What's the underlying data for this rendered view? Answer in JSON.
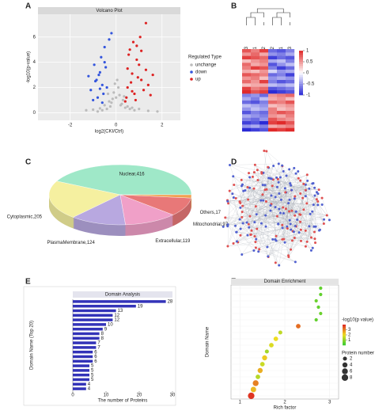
{
  "panel_labels": [
    "A",
    "B",
    "C",
    "D",
    "E",
    "F"
  ],
  "chart_data": [
    {
      "type": "scatter",
      "title": "Volcano Plot",
      "xlabel": "log2(CKI/Ctrl)",
      "ylabel": "-log10(p-value)",
      "xlim": [
        -3.4,
        2.8
      ],
      "xticks": [
        -2,
        0,
        2
      ],
      "ylim": [
        -0.6,
        7.8
      ],
      "yticks": [
        0,
        2,
        4,
        6
      ],
      "grid": true,
      "legend_title": "Regulated Type",
      "series": [
        {
          "name": "unchange",
          "color": "#bbbbbb",
          "x": [
            -0.4,
            -0.2,
            0,
            0.2,
            0.4,
            -0.6,
            0.6,
            -0.1,
            0.1,
            -0.3,
            0.3,
            0.5,
            -0.5,
            0.8,
            -0.8,
            1.0,
            -1.0,
            1.4,
            0.05,
            -0.05,
            0.15,
            -0.15,
            0.25,
            -0.25,
            1.8,
            -1.3,
            0.7,
            -0.7,
            0.35,
            -0.35
          ],
          "y": [
            0.3,
            0.8,
            1.2,
            0.6,
            0.4,
            0.2,
            0.3,
            1.6,
            2.0,
            0.9,
            1.0,
            0.5,
            0.6,
            0.2,
            0.1,
            0.3,
            0.25,
            0.15,
            2.6,
            2.3,
            1.4,
            1.1,
            0.7,
            0.5,
            0.1,
            0.2,
            0.4,
            0.35,
            1.3,
            1.5
          ]
        },
        {
          "name": "down",
          "color": "#3355dd",
          "x": [
            -0.9,
            -0.7,
            -0.5,
            -1.1,
            -0.6,
            -0.8,
            -0.45,
            -1.2,
            -0.55,
            -0.65,
            -0.75,
            -0.4,
            -1.0,
            -0.85,
            -0.5,
            -0.95,
            -0.6,
            -0.7,
            -0.3,
            -0.2
          ],
          "y": [
            2.5,
            3.2,
            4.0,
            1.8,
            2.2,
            1.2,
            3.6,
            2.9,
            1.5,
            4.4,
            3.0,
            2.0,
            1.0,
            2.6,
            5.2,
            3.8,
            0.8,
            1.9,
            5.8,
            6.3
          ]
        },
        {
          "name": "up",
          "color": "#dd2222",
          "x": [
            0.5,
            0.7,
            0.9,
            1.1,
            1.3,
            0.6,
            0.8,
            1.0,
            1.2,
            0.45,
            0.55,
            0.65,
            0.75,
            0.85,
            0.95,
            1.05,
            1.4,
            1.6,
            0.4,
            0.5,
            0.7,
            0.9,
            1.5,
            1.1,
            1.3
          ],
          "y": [
            2.0,
            3.1,
            4.2,
            2.6,
            3.4,
            5.0,
            1.5,
            3.8,
            1.8,
            1.2,
            4.6,
            2.4,
            5.6,
            1.0,
            2.8,
            6.0,
            2.2,
            3.0,
            0.9,
            3.5,
            1.7,
            5.3,
            1.4,
            4.9,
            7.1
          ]
        }
      ]
    },
    {
      "type": "heatmap",
      "columns": [
        "CKI3",
        "CKI1",
        "CKI2",
        "Ctrl2",
        "Ctrl1",
        "Ctrl3"
      ],
      "colorlim": [
        -1,
        1
      ],
      "colorticks": [
        1,
        0.5,
        0,
        -0.5,
        -1
      ],
      "colors": [
        "#2b2bd6",
        "#ffffff",
        "#e02a2a"
      ],
      "values": [
        [
          0.8,
          0.6,
          0.9,
          -0.7,
          -0.8,
          -0.6
        ],
        [
          0.5,
          0.7,
          0.4,
          -0.5,
          -0.6,
          -0.4
        ],
        [
          0.9,
          0.8,
          0.7,
          -0.9,
          -0.7,
          -0.8
        ],
        [
          0.3,
          0.5,
          0.6,
          -0.4,
          -0.3,
          -0.6
        ],
        [
          0.7,
          0.4,
          0.5,
          -0.8,
          -0.5,
          -0.3
        ],
        [
          0.6,
          0.9,
          0.8,
          -0.6,
          -0.9,
          -0.7
        ],
        [
          0.4,
          0.3,
          0.5,
          -0.2,
          -0.5,
          -0.4
        ],
        [
          0.8,
          0.7,
          0.6,
          -0.7,
          -0.6,
          -0.9
        ],
        [
          0.5,
          0.6,
          0.3,
          -0.5,
          -0.4,
          -0.5
        ],
        [
          0.7,
          0.5,
          0.9,
          -0.6,
          -0.8,
          -0.7
        ],
        [
          0.3,
          0.4,
          0.4,
          -0.3,
          -0.4,
          -0.3
        ],
        [
          0.9,
          0.6,
          0.7,
          -0.8,
          -0.7,
          -0.6
        ],
        [
          1.0,
          0.8,
          0.9,
          -1.0,
          -0.9,
          -0.8
        ],
        [
          -0.6,
          -0.5,
          -0.7,
          0.5,
          0.6,
          0.7
        ],
        [
          -0.4,
          -0.6,
          -0.3,
          0.4,
          0.5,
          0.3
        ],
        [
          -0.7,
          -0.8,
          -0.6,
          0.7,
          0.6,
          0.8
        ],
        [
          -0.3,
          -0.4,
          -0.5,
          0.3,
          0.4,
          0.5
        ],
        [
          -0.5,
          -0.3,
          -0.4,
          0.6,
          0.3,
          0.4
        ],
        [
          -0.8,
          -0.6,
          -0.7,
          0.6,
          0.8,
          0.7
        ],
        [
          -0.4,
          -0.5,
          -0.6,
          0.5,
          0.4,
          0.6
        ],
        [
          -0.6,
          -0.7,
          -0.5,
          0.8,
          0.6,
          0.5
        ],
        [
          -0.9,
          -0.8,
          -1.0,
          0.9,
          1.0,
          0.8
        ],
        [
          -0.5,
          -0.4,
          -0.6,
          0.4,
          0.5,
          0.6
        ],
        [
          -1.0,
          -0.9,
          -0.8,
          1.0,
          0.9,
          1.0
        ]
      ]
    },
    {
      "type": "pie",
      "values": [
        416,
        205,
        124,
        119,
        97,
        17
      ],
      "value_labels": [
        "Nuclear,416",
        "Cytoplasmic,205",
        "PlasmaMembrane,124",
        "Extracellular,119",
        "Mitochondrial,97",
        "Others,17"
      ],
      "colors": [
        "#9fe8c8",
        "#f5f0a0",
        "#b8a8e0",
        "#f0a0c8",
        "#e87878",
        "#f0a050"
      ]
    },
    {
      "type": "barh",
      "title": "Domain Analysis",
      "xlabel": "The number of Proteins",
      "ylabel": "Domain Name (Top 20)",
      "categories": [
        null,
        null,
        null,
        null,
        null,
        null,
        null,
        null,
        null,
        null,
        null,
        null,
        null,
        null,
        null,
        null,
        null,
        null,
        null,
        null
      ],
      "values": [
        28,
        19,
        13,
        12,
        12,
        10,
        9,
        8,
        8,
        7,
        7,
        6,
        6,
        6,
        5,
        5,
        5,
        5,
        4,
        4
      ],
      "color": "#3333b8",
      "xlim": [
        0,
        30
      ],
      "xticks": [
        0,
        10,
        20,
        30
      ]
    },
    {
      "type": "dot",
      "title": "Domain Enrichment",
      "xlabel": "Rich factor",
      "ylabel": "Domain Name",
      "categories": [
        null,
        null,
        null,
        null,
        null,
        null,
        null,
        null,
        null,
        null,
        null,
        null,
        null,
        null,
        null,
        null,
        null,
        null
      ],
      "x": [
        2.8,
        2.8,
        2.7,
        2.75,
        2.8,
        2.7,
        2.3,
        1.9,
        1.8,
        1.7,
        1.6,
        1.55,
        1.5,
        1.45,
        1.4,
        1.35,
        1.3,
        1.25
      ],
      "size": [
        1,
        1,
        1,
        1,
        1,
        1,
        3,
        2,
        3,
        3,
        2,
        4,
        3,
        4,
        3,
        6,
        5,
        8
      ],
      "pvalue": [
        0.5,
        0.5,
        0.6,
        0.5,
        0.6,
        0.5,
        3.2,
        1.5,
        2.0,
        1.8,
        1.2,
        2.2,
        1.6,
        2.5,
        1.4,
        3.0,
        2.4,
        3.8
      ],
      "xlim": [
        0.8,
        3.2
      ],
      "xticks": [
        1,
        2,
        3
      ],
      "color_title": "-log10(p value)",
      "colorlim": [
        0,
        4
      ],
      "colorticks": [
        1,
        2,
        3
      ],
      "colors": [
        "#33cc33",
        "#eedd22",
        "#dd2222"
      ],
      "size_title": "Protein number",
      "sizeticks": [
        2,
        4,
        6,
        8
      ]
    }
  ]
}
